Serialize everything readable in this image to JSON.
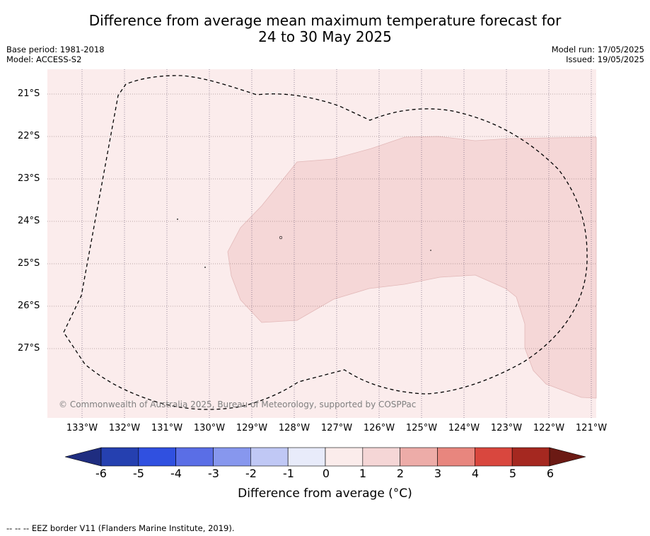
{
  "title_line1": "Difference from average mean maximum temperature forecast for",
  "title_line2": "24 to 30 May 2025",
  "base_period": "Base period: 1981-2018",
  "model": "Model: ACCESS-S2",
  "model_run": "Model run: 17/05/2025",
  "issued": "Issued: 19/05/2025",
  "latitude_labels": [
    "21°S",
    "22°S",
    "23°S",
    "24°S",
    "25°S",
    "26°S",
    "27°S"
  ],
  "longitude_labels": [
    "133°W",
    "132°W",
    "131°W",
    "130°W",
    "129°W",
    "128°W",
    "127°W",
    "126°W",
    "125°W",
    "124°W",
    "123°W",
    "122°W",
    "121°W"
  ],
  "copyright": "© Commonwealth of Australia 2025, Bureau of Meteorology, supported by COSPPac",
  "colorbar": {
    "tick_labels": [
      "-6",
      "-5",
      "-4",
      "-3",
      "-2",
      "-1",
      "0",
      "1",
      "2",
      "3",
      "4",
      "5",
      "6"
    ],
    "label": "Difference from average (°C)",
    "colors": [
      "#1f2d80",
      "#2540b0",
      "#3050e0",
      "#5a6ee6",
      "#8797ee",
      "#c0c8f5",
      "#e8ebfa",
      "#fbeceb",
      "#f5d6d6",
      "#edaca8",
      "#e8867e",
      "#d9473e",
      "#a52820",
      "#6b1a14"
    ]
  },
  "map_colors": {
    "anomaly_0_to_1": "#fbecec",
    "anomaly_1_to_2": "#f5d7d7"
  },
  "footnote": "-- -- -- EEZ border V11 (Flanders Marine Institute, 2019)."
}
